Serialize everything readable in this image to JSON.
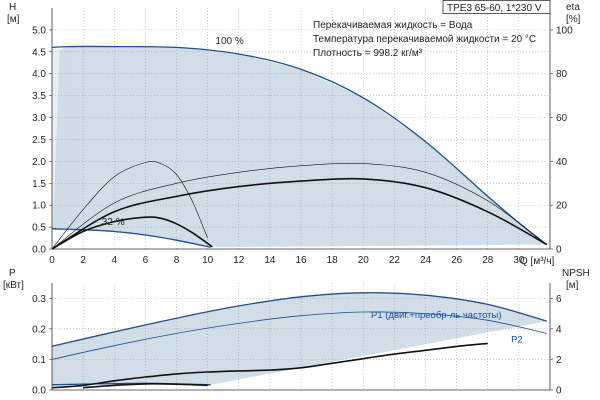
{
  "model_title": "TPE3 65-60, 1*230 V",
  "fluid_info": [
    "Перекачиваемая жидкость = Вода",
    "Температура перекачиваемой жидкости = 20 °C",
    "Плотность = 998.2 кг/м³"
  ],
  "colors": {
    "envelope_fill": "#cfdbe6",
    "light_fill": "#e6eef6",
    "main_curve": "#1f4e8c",
    "dark_curve": "#111111",
    "grid": "#999999"
  },
  "chart_data": [
    {
      "type": "line",
      "name": "head",
      "ylabel_lines": [
        "H",
        "[м]"
      ],
      "y2label_lines": [
        "eta",
        "[%]"
      ],
      "xlabel": "Q [м³/ч]",
      "xlim": [
        0,
        32
      ],
      "xticks": [
        0,
        2,
        4,
        6,
        8,
        10,
        12,
        14,
        16,
        18,
        20,
        22,
        24,
        26,
        28,
        30
      ],
      "ylim": [
        0,
        5.5
      ],
      "yticks": [
        0.0,
        0.5,
        1.0,
        1.5,
        2.0,
        2.5,
        3.0,
        3.5,
        4.0,
        4.5,
        5.0
      ],
      "y2lim": [
        0,
        110
      ],
      "y2ticks": [
        0,
        20,
        40,
        60,
        80,
        100
      ],
      "annotations": [
        {
          "text": "100 %",
          "x": 10.5,
          "y": 4.68
        },
        {
          "text": "32 %",
          "x": 3.2,
          "y": 0.55
        }
      ],
      "series": [
        {
          "role": "max_head",
          "axis": "left",
          "style": "main",
          "x": [
            0,
            1,
            4,
            8,
            12,
            16,
            20,
            24,
            28,
            30.5,
            31.8
          ],
          "y": [
            4.6,
            4.62,
            4.62,
            4.6,
            4.45,
            4.1,
            3.45,
            2.45,
            1.2,
            0.45,
            0.1
          ]
        },
        {
          "role": "min_head",
          "axis": "left",
          "style": "main",
          "x": [
            0,
            2,
            4,
            6,
            8,
            10.2
          ],
          "y": [
            0.46,
            0.44,
            0.4,
            0.32,
            0.2,
            0.04
          ]
        },
        {
          "role": "eta_max",
          "axis": "right",
          "style": "thin",
          "x": [
            0,
            4,
            8,
            12,
            16,
            20,
            24,
            28,
            31.8
          ],
          "y": [
            0,
            21,
            30,
            35,
            38,
            39,
            35,
            22,
            2
          ]
        },
        {
          "role": "eta_system",
          "axis": "right",
          "style": "bold",
          "x": [
            0,
            4,
            8,
            12,
            16,
            20,
            24,
            28,
            31.8
          ],
          "y": [
            0,
            17,
            24,
            28.5,
            31,
            32,
            28,
            17,
            2
          ]
        },
        {
          "role": "eta_min_thin",
          "axis": "right",
          "style": "thin",
          "x": [
            0,
            2,
            4,
            6,
            7,
            8,
            9,
            10
          ],
          "y": [
            0,
            18,
            33,
            39.5,
            39,
            34,
            22,
            5
          ]
        },
        {
          "role": "eta_min_bold",
          "axis": "right",
          "style": "bold",
          "x": [
            0,
            2,
            4,
            6,
            7,
            8,
            9,
            10.3
          ],
          "y": [
            0,
            8,
            12.5,
            14.5,
            14,
            11.5,
            7.5,
            1
          ]
        }
      ],
      "envelope": {
        "x": [
          0,
          0.5,
          1,
          4,
          8,
          12,
          16,
          20,
          24,
          28,
          30.5,
          31.8,
          10.2,
          8,
          6,
          4,
          2,
          0
        ],
        "y": [
          0,
          4.55,
          4.62,
          4.62,
          4.6,
          4.45,
          4.1,
          3.45,
          2.45,
          1.2,
          0.45,
          0.1,
          0.04,
          0.2,
          0.32,
          0.4,
          0.44,
          0.46
        ]
      }
    },
    {
      "type": "line",
      "name": "power",
      "ylabel_lines": [
        "P",
        "[кВт]"
      ],
      "y2label_lines": [
        "NPSH",
        "[м]"
      ],
      "xlim": [
        0,
        32
      ],
      "ylim": [
        0,
        0.35
      ],
      "yticks": [
        0.0,
        0.1,
        0.2,
        0.3
      ],
      "y2lim": [
        0,
        7
      ],
      "y2ticks": [
        0,
        2,
        4,
        6
      ],
      "annotations": [
        {
          "text": "P1 (двиг.+преобр-ль частоты)",
          "x": 20.5,
          "y": 0.235
        },
        {
          "text": "P2",
          "x": 29.5,
          "y": 0.155
        }
      ],
      "series": [
        {
          "role": "P1",
          "axis": "left",
          "style": "main",
          "x": [
            0,
            4,
            8,
            12,
            16,
            20,
            24,
            28,
            31.8
          ],
          "y": [
            0.143,
            0.19,
            0.235,
            0.275,
            0.305,
            0.318,
            0.31,
            0.28,
            0.225
          ]
        },
        {
          "role": "P2",
          "axis": "left",
          "style": "blue_thin",
          "x": [
            0,
            4,
            8,
            12,
            16,
            20,
            24,
            28,
            31.8
          ],
          "y": [
            0.1,
            0.145,
            0.185,
            0.218,
            0.243,
            0.255,
            0.25,
            0.228,
            0.185
          ]
        },
        {
          "role": "P1_min",
          "axis": "left",
          "style": "main",
          "x": [
            0,
            3,
            6,
            8,
            10.2
          ],
          "y": [
            0.017,
            0.02,
            0.022,
            0.02,
            0.017
          ]
        },
        {
          "role": "NPSH",
          "axis": "right",
          "style": "bold",
          "x": [
            0,
            2,
            4,
            6,
            8,
            10,
            12,
            14,
            16,
            18,
            20,
            22,
            24,
            26,
            28
          ],
          "y": [
            0.15,
            0.3,
            0.6,
            0.85,
            1.05,
            1.18,
            1.25,
            1.3,
            1.45,
            1.75,
            2.05,
            2.35,
            2.6,
            2.85,
            3.05
          ]
        },
        {
          "role": "NPSH_min",
          "axis": "right",
          "style": "bold",
          "x": [
            2,
            4,
            6,
            8,
            10
          ],
          "y": [
            0.15,
            0.3,
            0.4,
            0.38,
            0.3
          ]
        }
      ],
      "envelope": {
        "x": [
          0,
          4,
          8,
          12,
          16,
          20,
          24,
          28,
          31.8,
          10.2,
          8,
          6,
          3,
          0
        ],
        "y": [
          0.143,
          0.19,
          0.235,
          0.275,
          0.305,
          0.318,
          0.31,
          0.28,
          0.225,
          0.017,
          0.02,
          0.022,
          0.02,
          0.017
        ]
      }
    }
  ]
}
